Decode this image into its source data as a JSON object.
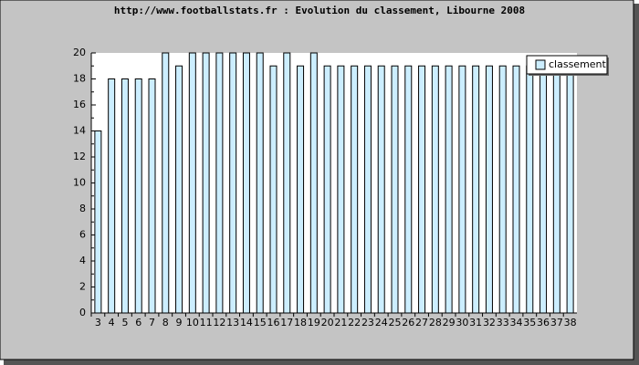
{
  "chart_data": {
    "type": "bar",
    "title": "http://www.footballstats.fr : Evolution du classement, Libourne 2008",
    "categories": [
      "3",
      "4",
      "5",
      "6",
      "7",
      "8",
      "9",
      "10",
      "11",
      "12",
      "13",
      "14",
      "15",
      "16",
      "17",
      "18",
      "19",
      "20",
      "21",
      "22",
      "23",
      "24",
      "25",
      "26",
      "27",
      "28",
      "29",
      "30",
      "31",
      "32",
      "33",
      "34",
      "35",
      "36",
      "37",
      "38"
    ],
    "series": [
      {
        "name": "classement",
        "color": "#cceeff",
        "values": [
          14,
          18,
          18,
          18,
          18,
          20,
          19,
          20,
          20,
          20,
          20,
          20,
          20,
          19,
          20,
          19,
          20,
          19,
          19,
          19,
          19,
          19,
          19,
          19,
          19,
          19,
          19,
          19,
          19,
          19,
          19,
          19,
          19,
          19,
          19,
          19
        ]
      }
    ],
    "ylim": [
      0,
      20
    ],
    "yticks": [
      0,
      2,
      4,
      6,
      8,
      10,
      12,
      14,
      16,
      18,
      20
    ],
    "legend": "upper right"
  }
}
